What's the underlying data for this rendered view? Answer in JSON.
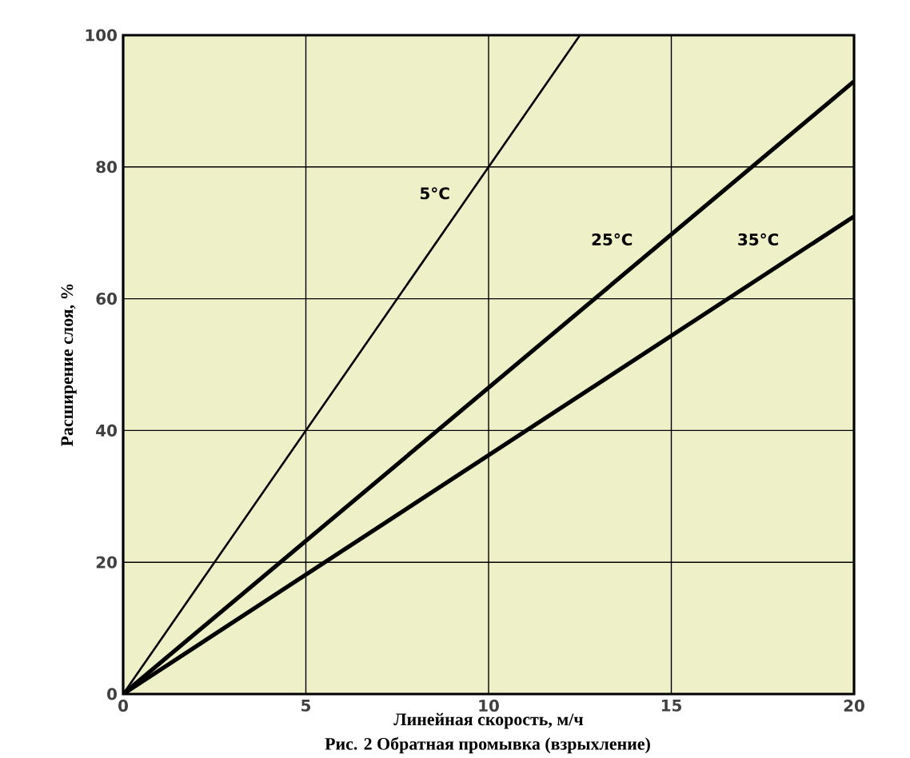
{
  "chart_data": {
    "type": "line",
    "xlabel": "Линейная скорость, м/ч",
    "ylabel": "Расширение слоя, %",
    "annotations": [
      "Рис. 2 Обратная промывка (взрыхление)"
    ],
    "xlim": [
      0,
      20
    ],
    "ylim": [
      0,
      100
    ],
    "xticks": [
      0,
      5,
      10,
      15,
      20
    ],
    "yticks": [
      0,
      20,
      40,
      60,
      80,
      100
    ],
    "grid": true,
    "marker": "none",
    "line_style": "solid",
    "series": [
      {
        "name": "5°C",
        "color": "#000000",
        "x": [
          0,
          12.5
        ],
        "values": [
          0,
          100
        ]
      },
      {
        "name": "25°C",
        "color": "#000000",
        "x": [
          0,
          20
        ],
        "values": [
          0,
          93
        ]
      },
      {
        "name": "35°C",
        "color": "#000000",
        "x": [
          0,
          20
        ],
        "values": [
          0,
          72.5
        ]
      }
    ]
  }
}
